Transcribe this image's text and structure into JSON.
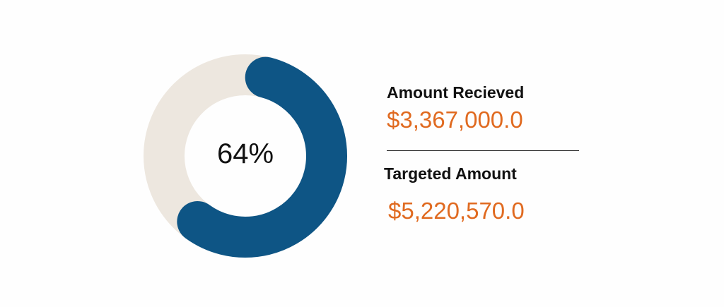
{
  "colors": {
    "track": "#ede7df",
    "fill": "#0e5585",
    "value_text": "#e06a20"
  },
  "chart_data": {
    "type": "pie",
    "style": "donut",
    "center_label": "64%",
    "progress_fraction": 0.64,
    "series": [
      {
        "name": "Amount Recieved",
        "value": 3367000.0
      },
      {
        "name": "Targeted Amount",
        "value": 5220570.0
      }
    ]
  },
  "stats": {
    "received_label": "Amount Recieved",
    "received_value": "$3,367,000.0",
    "target_label": "Targeted Amount",
    "target_value": "$5,220,570.0"
  }
}
